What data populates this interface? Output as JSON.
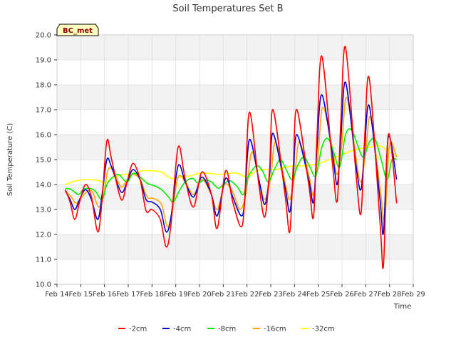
{
  "chart_data": {
    "type": "line",
    "title": "Soil Temperatures Set B",
    "xlabel": "Time",
    "ylabel": "Soil Temperature (C)",
    "site_label": "BC_met",
    "ylim": [
      10.0,
      20.0
    ],
    "yticks": [
      "10.0",
      "11.0",
      "12.0",
      "13.0",
      "14.0",
      "15.0",
      "16.0",
      "17.0",
      "18.0",
      "19.0",
      "20.0"
    ],
    "xlim": [
      14,
      29
    ],
    "xticks": [
      "Feb 14",
      "Feb 15",
      "Feb 16",
      "Feb 17",
      "Feb 18",
      "Feb 19",
      "Feb 20",
      "Feb 21",
      "Feb 22",
      "Feb 23",
      "Feb 24",
      "Feb 25",
      "Feb 26",
      "Feb 27",
      "Feb 28",
      "Feb 29"
    ],
    "grid": "horizontal bands",
    "legend_position": "bottom",
    "x_unit": "day of February",
    "series": [
      {
        "name": "-2cm",
        "color": "#ff0000",
        "x": [
          14.35,
          14.55,
          14.75,
          14.95,
          15.2,
          15.45,
          15.72,
          15.9,
          16.1,
          16.3,
          16.7,
          16.95,
          17.2,
          17.5,
          17.75,
          18.0,
          18.35,
          18.6,
          18.8,
          19.1,
          19.4,
          19.75,
          20.1,
          20.5,
          20.75,
          21.1,
          21.4,
          21.75,
          21.9,
          22.1,
          22.5,
          22.75,
          22.95,
          23.1,
          23.6,
          23.8,
          23.95,
          24.1,
          24.6,
          24.8,
          24.95,
          25.15,
          25.6,
          25.8,
          25.95,
          26.15,
          26.6,
          26.8,
          26.95,
          27.15,
          27.6,
          27.75,
          27.95,
          28.3
        ],
        "y": [
          13.8,
          13.3,
          12.6,
          13.3,
          14.0,
          13.5,
          12.1,
          13.4,
          15.75,
          15.0,
          13.4,
          14.1,
          14.85,
          14.2,
          12.95,
          13.0,
          12.6,
          11.5,
          12.4,
          15.5,
          14.2,
          13.1,
          14.5,
          13.6,
          12.25,
          14.55,
          13.3,
          12.3,
          13.3,
          16.9,
          14.0,
          12.7,
          14.6,
          17.0,
          13.6,
          12.1,
          14.8,
          17.0,
          14.0,
          12.7,
          16.0,
          19.15,
          14.8,
          13.35,
          16.5,
          19.5,
          14.3,
          12.85,
          15.8,
          18.25,
          12.5,
          10.8,
          16.0,
          13.25
        ]
      },
      {
        "name": "-4cm",
        "color": "#0000cc",
        "x": [
          14.35,
          14.55,
          14.75,
          14.95,
          15.2,
          15.45,
          15.72,
          15.9,
          16.1,
          16.3,
          16.7,
          16.95,
          17.2,
          17.5,
          17.75,
          18.0,
          18.35,
          18.6,
          18.8,
          19.1,
          19.4,
          19.75,
          20.1,
          20.5,
          20.75,
          21.1,
          21.4,
          21.75,
          21.9,
          22.1,
          22.5,
          22.75,
          22.95,
          23.1,
          23.6,
          23.8,
          23.95,
          24.1,
          24.6,
          24.8,
          24.95,
          25.15,
          25.6,
          25.8,
          25.95,
          26.15,
          26.6,
          26.8,
          26.95,
          27.15,
          27.6,
          27.75,
          27.95,
          28.3
        ],
        "y": [
          13.75,
          13.4,
          13.0,
          13.4,
          13.8,
          13.4,
          12.6,
          13.6,
          15.0,
          14.7,
          13.7,
          14.1,
          14.6,
          14.2,
          13.4,
          13.3,
          13.0,
          12.1,
          12.7,
          14.75,
          14.1,
          13.5,
          14.3,
          13.6,
          12.75,
          14.25,
          13.5,
          12.75,
          13.3,
          15.8,
          14.2,
          13.2,
          14.4,
          16.05,
          13.9,
          12.9,
          14.4,
          16.0,
          14.2,
          13.3,
          15.5,
          17.6,
          15.2,
          14.0,
          15.8,
          18.1,
          14.7,
          13.8,
          15.4,
          17.15,
          13.4,
          12.1,
          15.9,
          14.2
        ]
      },
      {
        "name": "-8cm",
        "color": "#00ee00",
        "x": [
          14.35,
          14.6,
          14.9,
          15.1,
          15.35,
          15.6,
          15.9,
          16.1,
          16.35,
          16.6,
          16.95,
          17.2,
          17.5,
          17.8,
          18.1,
          18.4,
          18.7,
          18.9,
          19.15,
          19.4,
          19.7,
          19.95,
          20.2,
          20.5,
          20.8,
          21.05,
          21.3,
          21.6,
          21.85,
          22.05,
          22.4,
          22.65,
          22.9,
          23.15,
          23.4,
          23.65,
          23.9,
          24.15,
          24.4,
          24.65,
          24.9,
          25.15,
          25.4,
          25.65,
          25.9,
          26.15,
          26.4,
          26.65,
          26.9,
          27.15,
          27.4,
          27.65,
          27.9,
          28.1,
          28.3
        ],
        "y": [
          13.85,
          13.8,
          13.6,
          13.8,
          13.85,
          13.75,
          13.4,
          14.0,
          14.3,
          14.4,
          14.1,
          14.45,
          14.3,
          14.05,
          13.95,
          13.8,
          13.5,
          13.3,
          13.75,
          14.1,
          14.25,
          14.05,
          14.2,
          14.1,
          13.85,
          14.05,
          14.15,
          13.9,
          13.6,
          14.3,
          14.75,
          14.55,
          14.1,
          14.6,
          15.0,
          14.6,
          14.2,
          14.8,
          15.1,
          14.7,
          14.35,
          15.5,
          15.85,
          15.3,
          14.7,
          16.0,
          16.2,
          15.6,
          15.1,
          15.7,
          15.8,
          15.0,
          14.2,
          15.0,
          15.0
        ]
      },
      {
        "name": "-16cm",
        "color": "#ffa500",
        "x": [
          14.35,
          14.6,
          14.8,
          15.05,
          15.3,
          15.5,
          15.75,
          15.95,
          16.15,
          16.4,
          16.7,
          16.95,
          17.2,
          17.5,
          17.8,
          18.05,
          18.4,
          18.65,
          18.85,
          19.1,
          19.4,
          19.75,
          20.1,
          20.45,
          20.75,
          21.05,
          21.4,
          21.7,
          21.95,
          22.2,
          22.5,
          22.75,
          23.0,
          23.2,
          23.6,
          23.8,
          24.0,
          24.2,
          24.6,
          24.8,
          25.0,
          25.2,
          25.6,
          25.8,
          26.0,
          26.2,
          26.6,
          26.8,
          27.0,
          27.2,
          27.6,
          27.8,
          28.0,
          28.3
        ],
        "y": [
          13.75,
          13.5,
          13.25,
          13.5,
          13.75,
          13.7,
          13.1,
          13.5,
          14.6,
          14.5,
          13.9,
          14.2,
          14.4,
          14.2,
          13.5,
          13.45,
          13.2,
          12.3,
          12.9,
          14.3,
          14.1,
          13.6,
          14.2,
          13.7,
          13.0,
          14.0,
          13.7,
          13.0,
          13.6,
          15.3,
          14.2,
          13.4,
          14.3,
          15.7,
          14.1,
          13.4,
          14.3,
          15.7,
          14.4,
          13.6,
          15.3,
          17.1,
          15.4,
          14.4,
          15.7,
          17.5,
          15.0,
          14.1,
          15.3,
          16.7,
          13.9,
          12.6,
          15.6,
          15.1
        ]
      },
      {
        "name": "-32cm",
        "color": "#ffff00",
        "x": [
          14.35,
          14.8,
          15.3,
          15.8,
          16.0,
          16.4,
          16.8,
          17.2,
          17.6,
          18.0,
          18.4,
          18.8,
          19.2,
          19.6,
          20.0,
          20.4,
          20.8,
          21.2,
          21.6,
          22.0,
          22.4,
          22.8,
          23.2,
          23.6,
          24.0,
          24.4,
          24.8,
          25.2,
          25.6,
          26.0,
          26.4,
          26.8,
          27.2,
          27.6,
          28.0,
          28.3
        ],
        "y": [
          14.0,
          14.15,
          14.2,
          14.15,
          14.05,
          14.3,
          14.4,
          14.45,
          14.55,
          14.55,
          14.5,
          14.25,
          14.3,
          14.35,
          14.45,
          14.45,
          14.4,
          14.45,
          14.45,
          14.3,
          14.55,
          14.6,
          14.6,
          14.7,
          14.75,
          14.75,
          14.8,
          14.9,
          15.05,
          15.2,
          15.35,
          15.45,
          15.5,
          15.55,
          15.3,
          15.2
        ]
      }
    ]
  }
}
